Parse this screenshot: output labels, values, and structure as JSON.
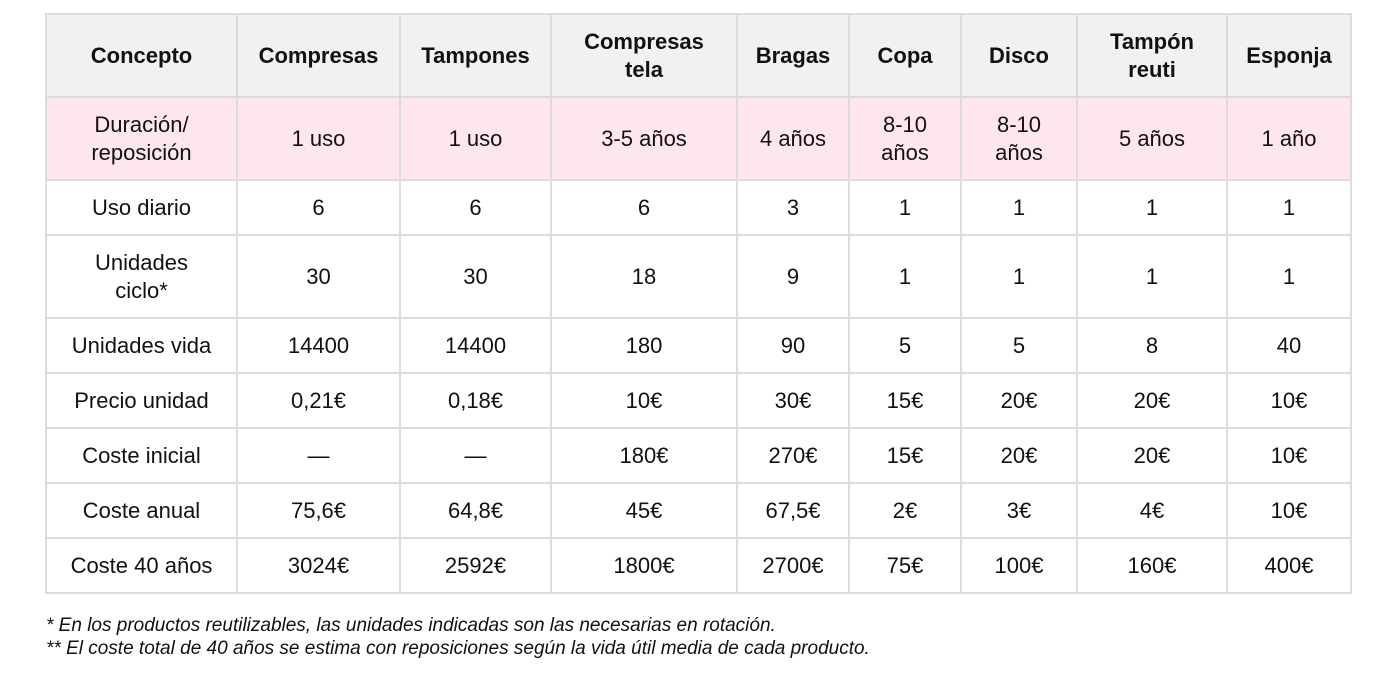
{
  "table": {
    "header": [
      "Concepto",
      "Compresas",
      "Tampones",
      "Compresas tela",
      "Bragas",
      "Copa",
      "Disco",
      "Tampón reuti",
      "Esponja"
    ],
    "rows": [
      [
        "Duración/ reposición",
        "1 uso",
        "1 uso",
        "3-5 años",
        "4 años",
        "8-10 años",
        "8-10 años",
        "5 años",
        "1 año"
      ],
      [
        "Uso diario",
        "6",
        "6",
        "6",
        "3",
        "1",
        "1",
        "1",
        "1"
      ],
      [
        "Unidades ciclo*",
        "30",
        "30",
        "18",
        "9",
        "1",
        "1",
        "1",
        "1"
      ],
      [
        "Unidades vida",
        "14400",
        "14400",
        "180",
        "90",
        "5",
        "5",
        "8",
        "40"
      ],
      [
        "Precio unidad",
        "0,21€",
        "0,18€",
        "10€",
        "30€",
        "15€",
        "20€",
        "20€",
        "10€"
      ],
      [
        "Coste inicial",
        "—",
        "—",
        "180€",
        "270€",
        "15€",
        "20€",
        "20€",
        "10€"
      ],
      [
        "Coste anual",
        "75,6€",
        "64,8€",
        "45€",
        "67,5€",
        "2€",
        "3€",
        "4€",
        "10€"
      ],
      [
        "Coste 40 años",
        "3024€",
        "2592€",
        "1800€",
        "2700€",
        "75€",
        "100€",
        "160€",
        "400€"
      ]
    ]
  },
  "footnotes": [
    "* En los productos reutilizables, las unidades indicadas son las necesarias en rotación.",
    "** El coste total de 40 años se estima con reposiciones según la vida útil media de cada producto."
  ]
}
